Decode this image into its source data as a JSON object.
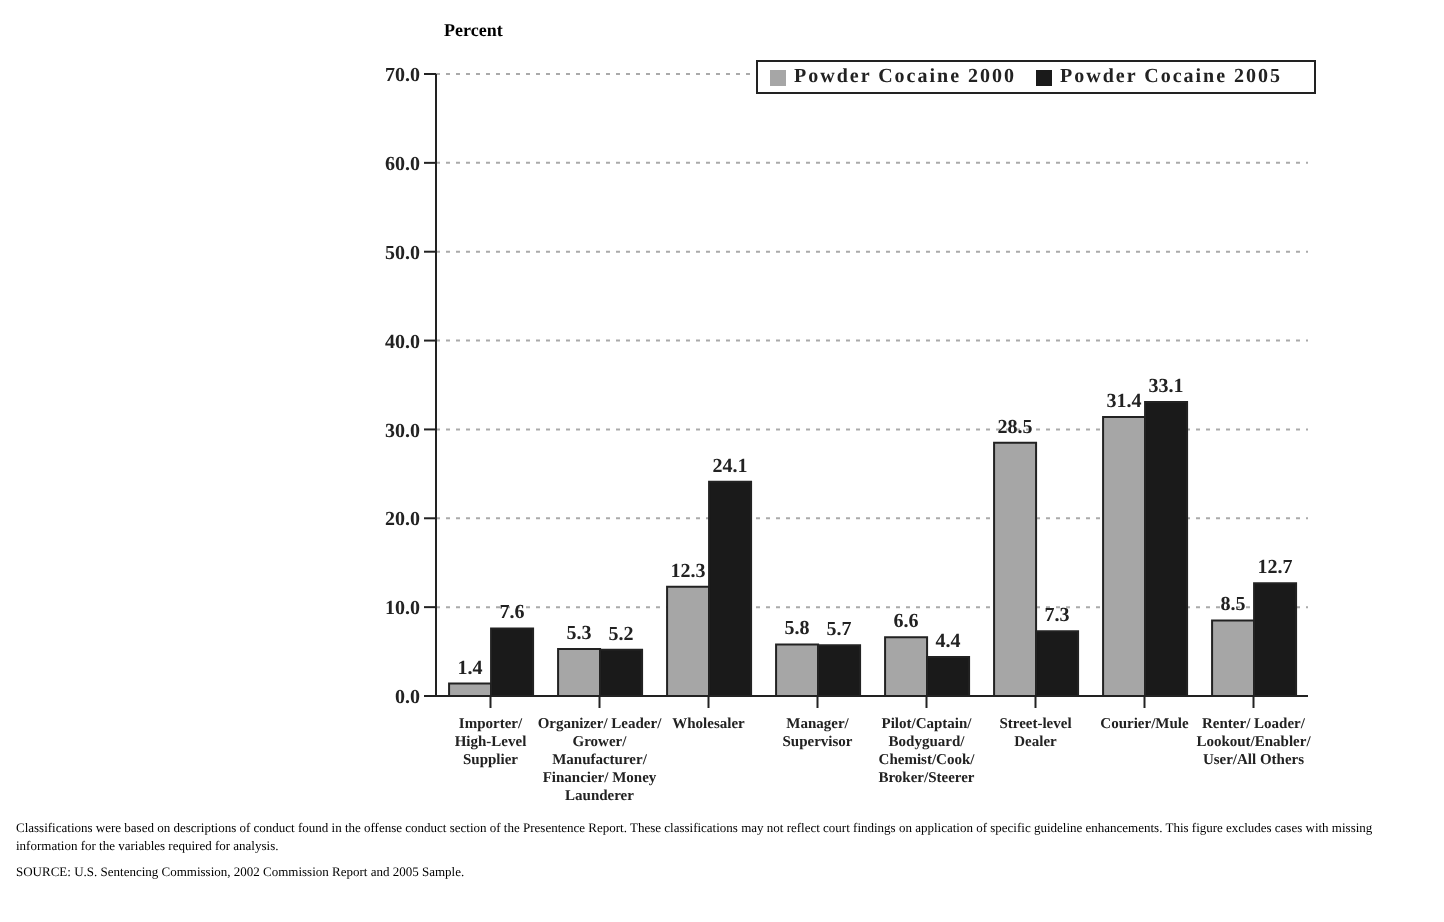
{
  "chart_data": {
    "type": "bar",
    "ylabel": "Percent",
    "categories": [
      "Importer/ High-Level Supplier",
      "Organizer/ Leader/ Grower/ Manufacturer/ Financier/ Money Launderer",
      "Wholesaler",
      "Manager/ Supervisor",
      "Pilot/Captain/ Bodyguard/ Chemist/Cook/ Broker/Steerer",
      "Street-level Dealer",
      "Courier/Mule",
      "Renter/ Loader/ Lookout/Enabler/ User/All Others"
    ],
    "series": [
      {
        "name": "Powder Cocaine 2000",
        "color": "#a6a6a6",
        "values": [
          1.4,
          5.3,
          12.3,
          5.8,
          6.6,
          28.5,
          31.4,
          8.5
        ]
      },
      {
        "name": "Powder Cocaine 2005",
        "color": "#1a1a1a",
        "values": [
          7.6,
          5.2,
          24.1,
          5.7,
          4.4,
          7.3,
          33.1,
          12.7
        ]
      }
    ],
    "ylim": [
      0,
      70
    ],
    "yticks": [
      {
        "value": 0,
        "label": "0.0"
      },
      {
        "value": 10,
        "label": "10.0"
      },
      {
        "value": 20,
        "label": "20.0"
      },
      {
        "value": 30,
        "label": "30.0"
      },
      {
        "value": 40,
        "label": "40.0"
      },
      {
        "value": 50,
        "label": "50.0"
      },
      {
        "value": 60,
        "label": "60.0"
      },
      {
        "value": 70,
        "label": "70.0"
      }
    ],
    "grid": "y",
    "legend": "top",
    "data_labels": true,
    "annotations": [
      "Classifications were based on descriptions of conduct found in the offense conduct section of the Presentence Report.  These classifications may not reflect court findings on application of specific guideline enhancements. This figure excludes cases with missing information for the variables required for analysis.",
      "SOURCE: U.S. Sentencing Commission, 2002 Commission Report and 2005 Sample."
    ]
  }
}
